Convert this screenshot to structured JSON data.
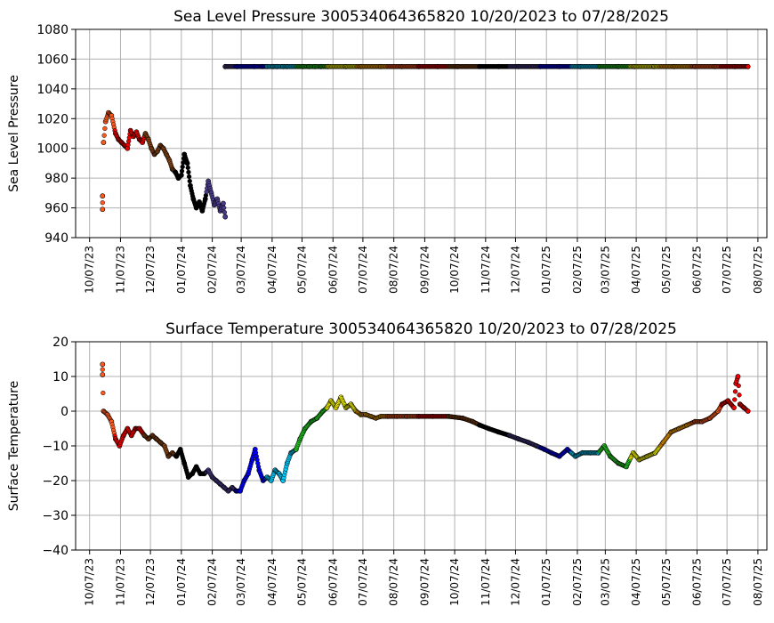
{
  "chart_data": [
    {
      "type": "scatter",
      "title": "Sea Level Pressure 300534064365820  10/20/2023 to 07/28/2025",
      "xlabel": "",
      "ylabel": "Sea Level Pressure",
      "ylim": [
        940,
        1080
      ],
      "yticks": [
        "940",
        "960",
        "980",
        "1000",
        "1020",
        "1040",
        "1060",
        "1080"
      ],
      "xlim": [
        "2023-09-23",
        "2025-08-16"
      ],
      "xticks": [
        "10/07/23",
        "11/07/23",
        "12/07/23",
        "01/07/24",
        "02/07/24",
        "03/07/24",
        "04/07/24",
        "05/07/24",
        "06/07/24",
        "07/07/24",
        "08/07/24",
        "09/07/24",
        "10/07/24",
        "11/07/24",
        "12/07/24",
        "01/07/25",
        "02/07/25",
        "03/07/25",
        "04/07/25",
        "05/07/25",
        "06/07/25",
        "07/07/25",
        "08/07/25"
      ],
      "grid": true,
      "legend": "none",
      "color_by_month": true,
      "series": [
        {
          "x": [
            "2023-10-20",
            "2023-10-20",
            "2023-10-21",
            "2023-10-23",
            "2023-10-26",
            "2023-10-29",
            "2023-11-02",
            "2023-11-05",
            "2023-11-08",
            "2023-11-11",
            "2023-11-14",
            "2023-11-17",
            "2023-11-20",
            "2023-11-23",
            "2023-11-26",
            "2023-11-29",
            "2023-12-02",
            "2023-12-05",
            "2023-12-08",
            "2023-12-11",
            "2023-12-14",
            "2023-12-17",
            "2023-12-20",
            "2023-12-23",
            "2023-12-26",
            "2023-12-29",
            "2024-01-01",
            "2024-01-04",
            "2024-01-07",
            "2024-01-10",
            "2024-01-13",
            "2024-01-16",
            "2024-01-19",
            "2024-01-22",
            "2024-01-25",
            "2024-01-28",
            "2024-01-31",
            "2024-02-03",
            "2024-02-06",
            "2024-02-09",
            "2024-02-12",
            "2024-02-15",
            "2024-02-18",
            "2024-02-20"
          ],
          "y": [
            968,
            959,
            1004,
            1018,
            1024,
            1022,
            1010,
            1006,
            1004,
            1002,
            1000,
            1012,
            1008,
            1011,
            1006,
            1004,
            1010,
            1006,
            1000,
            996,
            998,
            1002,
            1000,
            996,
            992,
            986,
            984,
            980,
            982,
            996,
            990,
            975,
            966,
            960,
            964,
            958,
            966,
            978,
            970,
            962,
            966,
            958,
            963,
            954
          ]
        },
        {
          "x": [
            "2024-02-20",
            "2024-03-03",
            "2024-03-20",
            "2024-03-28",
            "2024-04-02",
            "2024-04-08",
            "2024-04-12",
            "2024-04-18",
            "2024-04-22",
            "2024-05-08",
            "2024-05-14",
            "2024-05-20",
            "2024-05-26",
            "2024-06-02",
            "2024-06-20",
            "2024-07-05",
            "2024-07-25",
            "2024-08-15",
            "2024-09-01",
            "2024-09-20",
            "2024-10-10",
            "2024-11-01",
            "2024-11-20",
            "2024-12-10",
            "2025-01-01",
            "2025-01-20",
            "2025-02-10",
            "2025-03-01",
            "2025-03-20",
            "2025-04-05",
            "2025-04-25",
            "2025-05-15",
            "2025-06-05",
            "2025-06-25",
            "2025-07-15",
            "2025-07-28"
          ],
          "y": [
            1055,
            1055,
            1055,
            1055,
            1055,
            1055,
            1055,
            1055,
            1055,
            1055,
            1055,
            1055,
            1055,
            1055,
            1055,
            1055,
            1055,
            1055,
            1055,
            1055,
            1055,
            1055,
            1055,
            1055,
            1055,
            1055,
            1055,
            1055,
            1055,
            1055,
            1055,
            1055,
            1055,
            1055,
            1055,
            1055
          ]
        }
      ]
    },
    {
      "type": "scatter",
      "title": "Surface Temperature 300534064365820  10/20/2023 to 07/28/2025",
      "xlabel": "",
      "ylabel": "Surface Temperature",
      "ylim": [
        -40,
        20
      ],
      "yticks": [
        "−40",
        "−30",
        "−20",
        "−10",
        "0",
        "10",
        "20"
      ],
      "xlim": [
        "2023-09-23",
        "2025-08-16"
      ],
      "xticks": [
        "10/07/23",
        "11/07/23",
        "12/07/23",
        "01/07/24",
        "02/07/24",
        "03/07/24",
        "04/07/24",
        "05/07/24",
        "06/07/24",
        "07/07/24",
        "08/07/24",
        "09/07/24",
        "10/07/24",
        "11/07/24",
        "12/07/24",
        "01/07/25",
        "02/07/25",
        "03/07/25",
        "04/07/25",
        "05/07/25",
        "06/07/25",
        "07/07/25",
        "08/07/25"
      ],
      "grid": true,
      "legend": "none",
      "color_by_month": true,
      "series": [
        {
          "x": [
            "2023-10-20",
            "2023-10-20",
            "2023-10-21",
            "2023-10-25",
            "2023-10-29",
            "2023-11-02",
            "2023-11-06",
            "2023-11-10",
            "2023-11-14",
            "2023-11-18",
            "2023-11-22",
            "2023-11-26",
            "2023-12-01",
            "2023-12-05",
            "2023-12-09",
            "2023-12-13",
            "2023-12-17",
            "2023-12-21",
            "2023-12-25",
            "2023-12-29",
            "2024-01-02",
            "2024-01-06",
            "2024-01-10",
            "2024-01-14",
            "2024-01-18",
            "2024-01-22",
            "2024-01-26",
            "2024-01-30",
            "2024-02-03",
            "2024-02-07",
            "2024-02-11",
            "2024-02-15",
            "2024-02-19",
            "2024-02-23",
            "2024-02-27",
            "2024-03-02",
            "2024-03-06",
            "2024-03-10",
            "2024-03-14",
            "2024-03-18",
            "2024-03-21",
            "2024-03-25",
            "2024-03-29",
            "2024-04-02",
            "2024-04-06",
            "2024-04-10",
            "2024-04-14",
            "2024-04-18",
            "2024-04-22",
            "2024-04-26",
            "2024-05-01",
            "2024-05-05",
            "2024-05-10",
            "2024-05-16",
            "2024-05-22",
            "2024-05-28",
            "2024-06-01",
            "2024-06-05",
            "2024-06-10",
            "2024-06-15",
            "2024-06-20",
            "2024-06-25",
            "2024-06-30",
            "2024-07-05",
            "2024-07-10",
            "2024-07-15",
            "2024-07-20",
            "2024-07-25",
            "2024-08-01",
            "2024-08-10",
            "2024-08-20",
            "2024-09-01",
            "2024-09-15",
            "2024-10-01",
            "2024-10-15",
            "2024-10-25",
            "2024-11-01",
            "2024-11-10",
            "2024-11-20",
            "2024-12-01",
            "2024-12-10",
            "2024-12-20",
            "2024-12-28",
            "2025-01-05",
            "2025-01-12",
            "2025-01-20",
            "2025-01-28",
            "2025-02-05",
            "2025-02-12",
            "2025-02-20",
            "2025-02-28",
            "2025-03-06",
            "2025-03-12",
            "2025-03-20",
            "2025-03-28",
            "2025-04-04",
            "2025-04-10",
            "2025-04-18",
            "2025-04-26",
            "2025-05-04",
            "2025-05-12",
            "2025-05-20",
            "2025-05-28",
            "2025-06-05",
            "2025-06-12",
            "2025-06-20",
            "2025-06-28",
            "2025-07-02",
            "2025-07-08",
            "2025-07-14",
            "2025-07-16",
            "2025-07-18",
            "2025-07-20",
            "2025-07-24",
            "2025-07-28"
          ],
          "y": [
            13.5,
            10.5,
            0,
            -1,
            -3,
            -8,
            -10,
            -7,
            -5,
            -7,
            -5,
            -5,
            -7,
            -8,
            -7,
            -8,
            -9,
            -10,
            -13,
            -12,
            -13,
            -11,
            -15,
            -19,
            -18,
            -16,
            -18,
            -18,
            -17,
            -19,
            -20,
            -21,
            -22,
            -23,
            -22,
            -23,
            -23,
            -20,
            -18,
            -14,
            -11,
            -17,
            -20,
            -19,
            -20,
            -17,
            -18,
            -20,
            -15,
            -12,
            -11,
            -8,
            -5,
            -3,
            -2,
            0,
            1,
            3,
            1,
            4,
            1,
            2,
            0,
            -1,
            -1,
            -1.5,
            -2,
            -1.5,
            -1.5,
            -1.5,
            -1.5,
            -1.5,
            -1.5,
            -1.5,
            -2,
            -3,
            -4,
            -5,
            -6,
            -7,
            -8,
            -9,
            -10,
            -11,
            -12,
            -13,
            -11,
            -13,
            -12,
            -12,
            -12,
            -10,
            -13,
            -15,
            -16,
            -12,
            -14,
            -13,
            -12,
            -9,
            -6,
            -5,
            -4,
            -3,
            -3,
            -2,
            0,
            2,
            3,
            1,
            8,
            10,
            2,
            1,
            0
          ]
        }
      ]
    }
  ],
  "colors": {
    "months": [
      "#4b3b8c",
      "#0000ff",
      "#00ccff",
      "#22cc22",
      "#ffff00",
      "#ffa500",
      "#ff5a1e",
      "#ee0000",
      "#8b4513",
      "#000000"
    ],
    "grid": "#b0b0b0",
    "axis": "#000000"
  }
}
